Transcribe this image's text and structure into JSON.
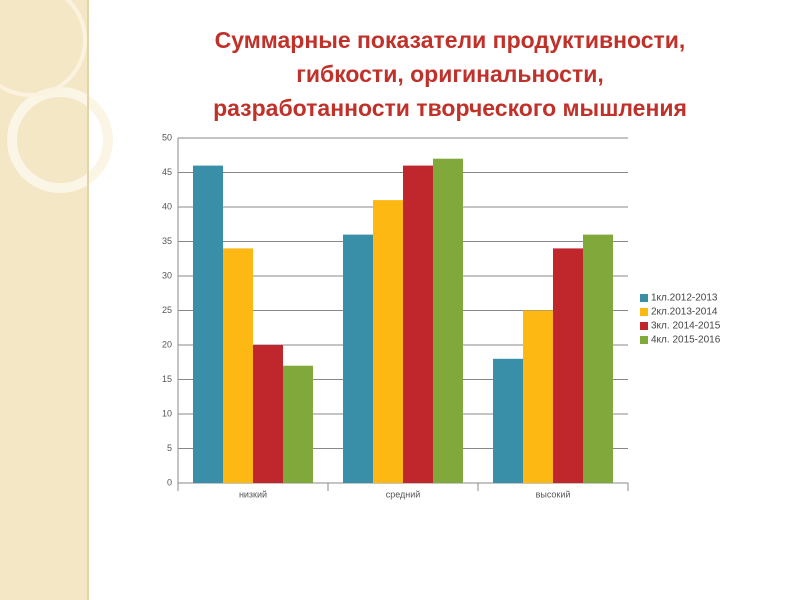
{
  "chart_data": {
    "type": "bar",
    "title": "Суммарные показатели продуктивности, гибкости, оригинальности, разработанности творческого мышления",
    "title_lines": [
      "Суммарные показатели продуктивности,",
      "гибкости, оригинальности,",
      "разработанности творческого мышления"
    ],
    "categories": [
      "низкий",
      "средний",
      "высокий"
    ],
    "series": [
      {
        "name": "1кл.2012-2013",
        "color": "#3a8fa8",
        "values": [
          46,
          36,
          18
        ]
      },
      {
        "name": "2кл.2013-2014",
        "color": "#fdb813",
        "values": [
          34,
          41,
          25
        ]
      },
      {
        "name": "3кл. 2014-2015",
        "color": "#c0272d",
        "values": [
          20,
          46,
          34
        ]
      },
      {
        "name": "4кл. 2015-2016",
        "color": "#80a83a",
        "values": [
          17,
          47,
          36
        ]
      }
    ],
    "ylim": [
      0,
      50
    ],
    "yticks": [
      0,
      5,
      10,
      15,
      20,
      25,
      30,
      35,
      40,
      45,
      50
    ],
    "grid": true,
    "legend": "right"
  }
}
